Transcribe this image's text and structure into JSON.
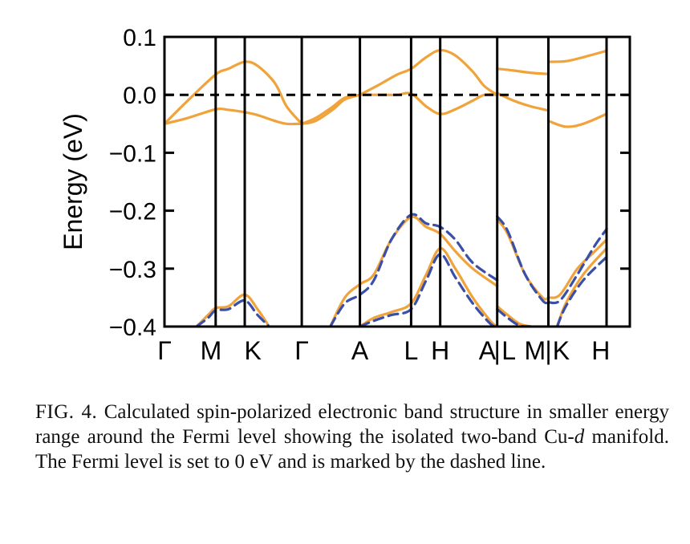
{
  "caption": {
    "label": "FIG. 4.",
    "text_before_italic": "Calculated spin-polarized electronic band structure in smaller energy range around the Fermi level showing the isolated two-band Cu-",
    "italic": "d",
    "text_after_italic": " manifold. The Fermi level is set to 0 eV and is marked by the dashed line."
  },
  "colors": {
    "spin_up": "#F0A33A",
    "spin_down": "#3A4FA8",
    "fermi": "#000000",
    "axes": "#000000"
  },
  "chart_data": {
    "type": "line",
    "title": "",
    "xlabel": "",
    "ylabel": "Energy (eV)",
    "ylim": [
      -0.4,
      0.1
    ],
    "yticks": [
      0.1,
      0.0,
      -0.1,
      -0.2,
      -0.3,
      -0.4
    ],
    "ytick_labels": [
      "0.1",
      "0.0",
      "−0.1",
      "−0.2",
      "−0.3",
      "−0.4"
    ],
    "xlim": [
      0,
      8.0
    ],
    "kpoints": [
      {
        "label": "Γ",
        "x": 0.0
      },
      {
        "label": "M",
        "x": 0.88
      },
      {
        "label": "K",
        "x": 1.38
      },
      {
        "label": "Γ",
        "x": 2.36
      },
      {
        "label": "A",
        "x": 3.36
      },
      {
        "label": "L",
        "x": 4.24
      },
      {
        "label": "H",
        "x": 4.74
      },
      {
        "label": "A",
        "x": 5.72
      },
      {
        "label": "L",
        "x": 5.72
      },
      {
        "label": "M",
        "x": 6.6
      },
      {
        "label": "K",
        "x": 6.6
      },
      {
        "label": "H",
        "x": 7.6
      }
    ],
    "kpoint_label_text": [
      "Γ",
      "M",
      "K",
      "Γ",
      "A",
      "L",
      "H",
      "A",
      "|",
      "L",
      "M",
      "|",
      "K",
      "H"
    ],
    "fermi_level": 0.0,
    "grid": false,
    "series": [
      {
        "spin": "up",
        "segment": 1,
        "x": [
          0.0,
          0.4,
          0.88,
          1.1,
          1.38,
          1.6,
          1.9,
          2.1,
          2.36
        ],
        "y": [
          -0.05,
          -0.01,
          0.035,
          0.045,
          0.057,
          0.05,
          0.02,
          -0.02,
          -0.05
        ]
      },
      {
        "spin": "up",
        "segment": 1,
        "x": [
          0.0,
          0.4,
          0.88,
          1.1,
          1.38,
          1.6,
          1.9,
          2.1,
          2.36
        ],
        "y": [
          -0.05,
          -0.04,
          -0.025,
          -0.026,
          -0.03,
          -0.035,
          -0.045,
          -0.05,
          -0.05
        ]
      },
      {
        "spin": "up",
        "segment": 1,
        "x": [
          2.36,
          2.6,
          2.9,
          3.1,
          3.36
        ],
        "y": [
          -0.05,
          -0.04,
          -0.02,
          -0.005,
          0.0
        ]
      },
      {
        "spin": "up",
        "segment": 1,
        "x": [
          2.36,
          2.6,
          2.9,
          3.1,
          3.36
        ],
        "y": [
          -0.05,
          -0.045,
          -0.025,
          -0.008,
          0.0
        ]
      },
      {
        "spin": "up",
        "segment": 2,
        "x": [
          3.36,
          3.7,
          4.0,
          4.24,
          4.5,
          4.74,
          5.0,
          5.3,
          5.5,
          5.72
        ],
        "y": [
          0.0,
          0.018,
          0.035,
          0.045,
          0.065,
          0.077,
          0.068,
          0.04,
          0.015,
          0.0
        ]
      },
      {
        "spin": "up",
        "segment": 2,
        "x": [
          3.36,
          3.7,
          4.0,
          4.24,
          4.5,
          4.74,
          5.0,
          5.3,
          5.5,
          5.72
        ],
        "y": [
          0.0,
          0.0,
          0.0,
          0.002,
          -0.02,
          -0.033,
          -0.025,
          -0.01,
          0.0,
          0.0
        ]
      },
      {
        "spin": "up",
        "segment": 3,
        "x": [
          5.72,
          6.0,
          6.3,
          6.6
        ],
        "y": [
          0.045,
          0.042,
          0.038,
          0.036
        ]
      },
      {
        "spin": "up",
        "segment": 3,
        "x": [
          5.72,
          6.0,
          6.3,
          6.6
        ],
        "y": [
          0.003,
          -0.01,
          -0.02,
          -0.027
        ]
      },
      {
        "spin": "up",
        "segment": 4,
        "x": [
          6.6,
          6.9,
          7.2,
          7.6
        ],
        "y": [
          0.057,
          0.058,
          0.065,
          0.076
        ]
      },
      {
        "spin": "up",
        "segment": 4,
        "x": [
          6.6,
          6.9,
          7.2,
          7.6
        ],
        "y": [
          -0.045,
          -0.055,
          -0.05,
          -0.033
        ]
      },
      {
        "spin": "up",
        "segment": 1,
        "x": [
          0.55,
          0.75,
          0.88,
          1.1,
          1.38,
          1.6,
          1.8
        ],
        "y": [
          -0.4,
          -0.38,
          -0.368,
          -0.365,
          -0.345,
          -0.37,
          -0.4
        ]
      },
      {
        "spin": "up",
        "segment": 2,
        "x": [
          2.85,
          3.1,
          3.36,
          3.6,
          3.9,
          4.24,
          4.5,
          4.74,
          5.0,
          5.3,
          5.72
        ],
        "y": [
          -0.4,
          -0.35,
          -0.327,
          -0.31,
          -0.25,
          -0.211,
          -0.228,
          -0.24,
          -0.27,
          -0.3,
          -0.33
        ]
      },
      {
        "spin": "up",
        "segment": 2,
        "x": [
          3.36,
          3.6,
          3.9,
          4.24,
          4.5,
          4.74,
          5.0,
          5.3,
          5.6,
          5.72
        ],
        "y": [
          -0.4,
          -0.385,
          -0.375,
          -0.36,
          -0.31,
          -0.265,
          -0.3,
          -0.35,
          -0.39,
          -0.4
        ]
      },
      {
        "spin": "up",
        "segment": 3,
        "x": [
          5.72,
          5.9,
          6.2,
          6.5,
          6.6
        ],
        "y": [
          -0.215,
          -0.24,
          -0.31,
          -0.35,
          -0.35
        ]
      },
      {
        "spin": "up",
        "segment": 3,
        "x": [
          5.72,
          5.9,
          6.1,
          6.3
        ],
        "y": [
          -0.365,
          -0.38,
          -0.395,
          -0.4
        ]
      },
      {
        "spin": "up",
        "segment": 4,
        "x": [
          6.6,
          6.8,
          7.1,
          7.4,
          7.6
        ],
        "y": [
          -0.35,
          -0.345,
          -0.3,
          -0.27,
          -0.25
        ]
      },
      {
        "spin": "up",
        "segment": 4,
        "x": [
          6.75,
          6.9,
          7.2,
          7.6
        ],
        "y": [
          -0.4,
          -0.36,
          -0.31,
          -0.265
        ]
      },
      {
        "spin": "down",
        "segment": 1,
        "x": [
          0.55,
          0.75,
          0.88,
          1.1,
          1.38,
          1.6,
          1.8
        ],
        "y": [
          -0.4,
          -0.385,
          -0.372,
          -0.37,
          -0.355,
          -0.38,
          -0.4
        ]
      },
      {
        "spin": "down",
        "segment": 2,
        "x": [
          2.85,
          3.1,
          3.36,
          3.6,
          3.9,
          4.24,
          4.5,
          4.74,
          5.0,
          5.3,
          5.72
        ],
        "y": [
          -0.4,
          -0.36,
          -0.345,
          -0.32,
          -0.25,
          -0.207,
          -0.222,
          -0.228,
          -0.25,
          -0.29,
          -0.32
        ]
      },
      {
        "spin": "down",
        "segment": 2,
        "x": [
          3.36,
          3.6,
          3.9,
          4.24,
          4.5,
          4.74,
          5.0,
          5.3,
          5.6,
          5.72
        ],
        "y": [
          -0.4,
          -0.39,
          -0.38,
          -0.37,
          -0.32,
          -0.275,
          -0.315,
          -0.36,
          -0.395,
          -0.4
        ]
      },
      {
        "spin": "down",
        "segment": 3,
        "x": [
          5.72,
          5.9,
          6.2,
          6.5,
          6.6
        ],
        "y": [
          -0.21,
          -0.235,
          -0.31,
          -0.355,
          -0.358
        ]
      },
      {
        "spin": "down",
        "segment": 3,
        "x": [
          5.72,
          5.9,
          6.1,
          6.3
        ],
        "y": [
          -0.37,
          -0.385,
          -0.398,
          -0.4
        ]
      },
      {
        "spin": "down",
        "segment": 4,
        "x": [
          6.6,
          6.8,
          7.1,
          7.4,
          7.6
        ],
        "y": [
          -0.358,
          -0.355,
          -0.31,
          -0.26,
          -0.232
        ]
      },
      {
        "spin": "down",
        "segment": 4,
        "x": [
          6.75,
          6.9,
          7.2,
          7.6
        ],
        "y": [
          -0.4,
          -0.365,
          -0.32,
          -0.28
        ]
      }
    ]
  }
}
